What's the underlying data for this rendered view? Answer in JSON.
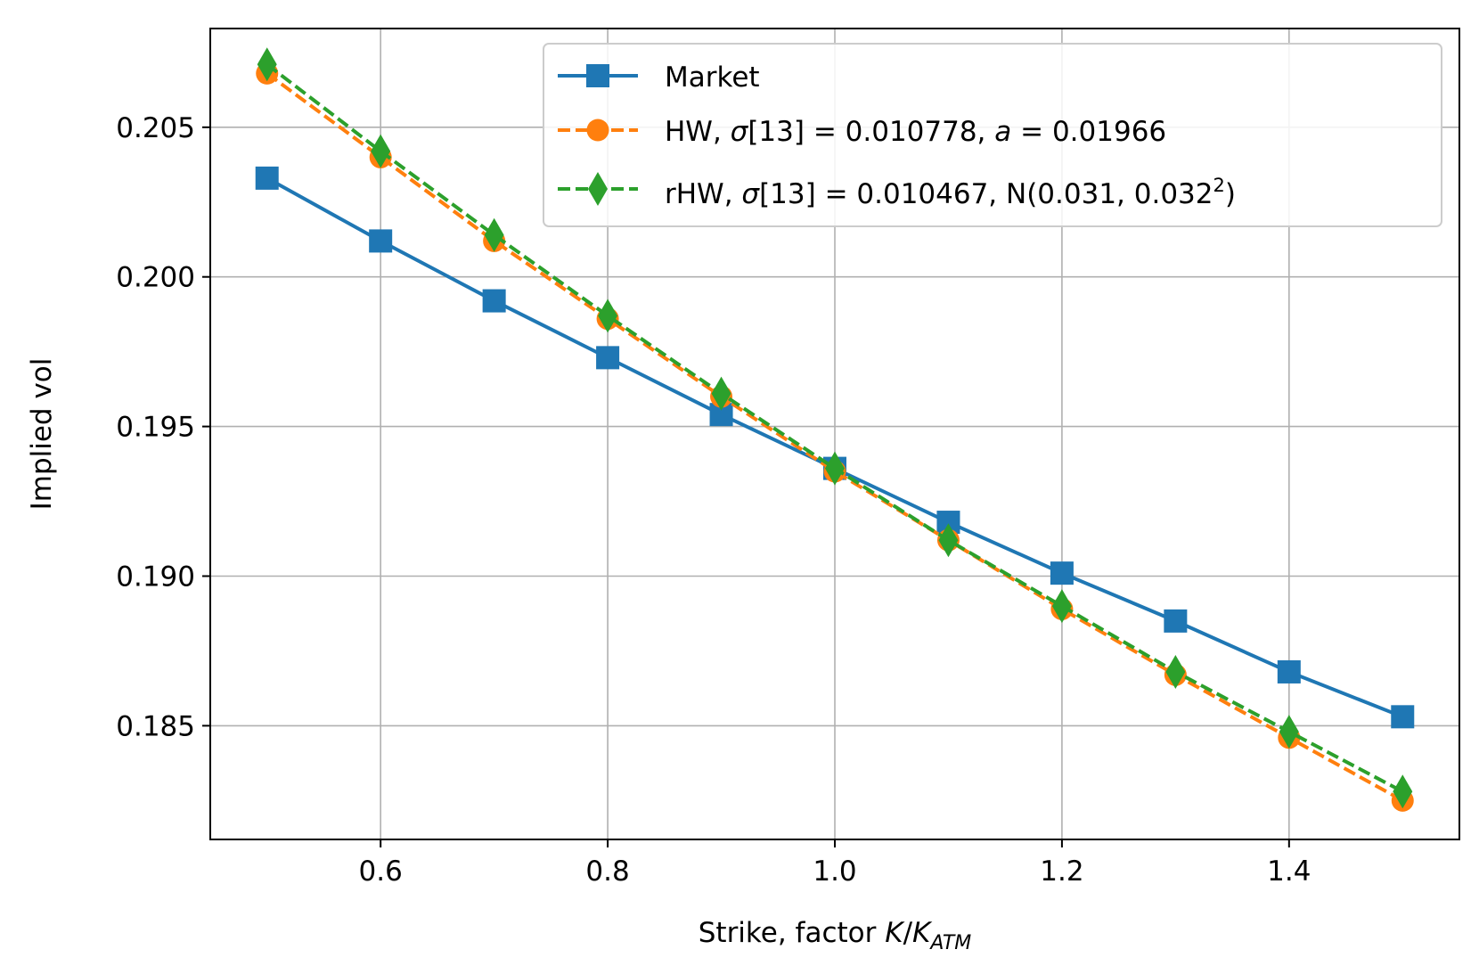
{
  "chart_data": {
    "type": "line",
    "title": "",
    "xlabel": "Strike, factor K/K_ATM",
    "ylabel": "Implied vol",
    "xlim": [
      0.45,
      1.55
    ],
    "ylim": [
      0.1812,
      0.2083
    ],
    "grid": true,
    "legend_position": "top-right",
    "x": [
      0.5,
      0.6,
      0.7,
      0.8,
      0.9,
      1.0,
      1.1,
      1.2,
      1.3,
      1.4,
      1.5
    ],
    "x_ticks": [
      0.6,
      0.8,
      1.0,
      1.2,
      1.4
    ],
    "x_tick_labels": [
      "0.6",
      "0.8",
      "1.0",
      "1.2",
      "1.4"
    ],
    "y_ticks": [
      0.185,
      0.19,
      0.195,
      0.2,
      0.205
    ],
    "y_tick_labels": [
      "0.185",
      "0.190",
      "0.195",
      "0.200",
      "0.205"
    ],
    "series": [
      {
        "name": "Market",
        "color": "#1f77b4",
        "marker": "square",
        "line_style": "solid",
        "values": [
          0.2033,
          0.2012,
          0.1992,
          0.1973,
          0.1954,
          0.1936,
          0.1918,
          0.1901,
          0.1885,
          0.1868,
          0.1853
        ]
      },
      {
        "name": "HW, σ[13] = 0.010778, a = 0.01966",
        "color": "#ff7f0e",
        "marker": "circle",
        "line_style": "dashed",
        "values": [
          0.2068,
          0.204,
          0.2012,
          0.1986,
          0.196,
          0.1935,
          0.1912,
          0.1889,
          0.1867,
          0.1846,
          0.1825
        ]
      },
      {
        "name": "rHW, σ[13] = 0.010467, N(0.031, 0.032²)",
        "color": "#2ca02c",
        "marker": "thin_diamond",
        "line_style": "dashed",
        "values": [
          0.2071,
          0.2042,
          0.2014,
          0.1987,
          0.1961,
          0.1936,
          0.1912,
          0.189,
          0.1868,
          0.1848,
          0.1828
        ]
      }
    ]
  }
}
